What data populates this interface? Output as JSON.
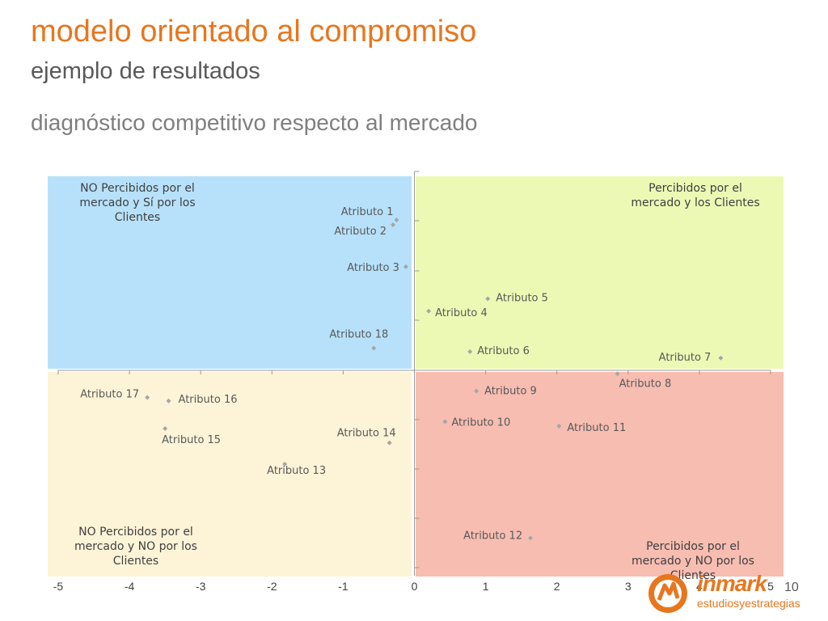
{
  "header": {
    "title": "modelo orientado al compromiso",
    "subtitle": "ejemplo de resultados",
    "section": "diagnóstico competitivo respecto al mercado"
  },
  "page_number": "10",
  "logo": {
    "main": "inmark",
    "sub": "estudiosyestrategias"
  },
  "colors": {
    "accent": "#e8761e",
    "q_top_left": "#b7e1fa",
    "q_top_right": "#ecf9b4",
    "q_bottom_left": "#fdf3d7",
    "q_bottom_right": "#f7bdb1"
  },
  "chart_data": {
    "type": "scatter",
    "xlim": [
      -5,
      5
    ],
    "ylim": [
      -4.3,
      4
    ],
    "x_ticks": [
      "-5",
      "-4",
      "-3",
      "-2",
      "-1",
      "0",
      "1",
      "2",
      "3",
      "4",
      "5"
    ],
    "quadrants": {
      "top_left": "NO Percibidos por el mercado y Sí por los Clientes",
      "top_right": "Percibidos por el mercado y los Clientes",
      "bottom_left": "NO Percibidos por el mercado y NO por los Clientes",
      "bottom_right": "Percibidos por el mercado y NO por los Clientes"
    },
    "points": [
      {
        "label": "Atributo 1",
        "x": -0.25,
        "y": 3.05
      },
      {
        "label": "Atributo 2",
        "x": -0.3,
        "y": 2.95
      },
      {
        "label": "Atributo 3",
        "x": -0.12,
        "y": 2.1
      },
      {
        "label": "Atributo 4",
        "x": 0.2,
        "y": 1.2
      },
      {
        "label": "Atributo 5",
        "x": 1.03,
        "y": 1.45
      },
      {
        "label": "Atributo 6",
        "x": 0.78,
        "y": 0.38
      },
      {
        "label": "Atributo 7",
        "x": 4.3,
        "y": 0.25
      },
      {
        "label": "Atributo 8",
        "x": 2.85,
        "y": -0.07
      },
      {
        "label": "Atributo 9",
        "x": 0.87,
        "y": -0.42
      },
      {
        "label": "Atributo 10",
        "x": 0.43,
        "y": -1.04
      },
      {
        "label": "Atributo 11",
        "x": 2.03,
        "y": -1.13
      },
      {
        "label": "Atributo 12",
        "x": 1.63,
        "y": -3.4
      },
      {
        "label": "Atributo 13",
        "x": -1.82,
        "y": -1.9
      },
      {
        "label": "Atributo 14",
        "x": -0.35,
        "y": -1.47
      },
      {
        "label": "Atributo 15",
        "x": -3.5,
        "y": -1.18
      },
      {
        "label": "Atributo 16",
        "x": -3.45,
        "y": -0.62
      },
      {
        "label": "Atributo 17",
        "x": -3.75,
        "y": -0.55
      },
      {
        "label": "Atributo 18",
        "x": -0.57,
        "y": 0.45
      }
    ]
  }
}
